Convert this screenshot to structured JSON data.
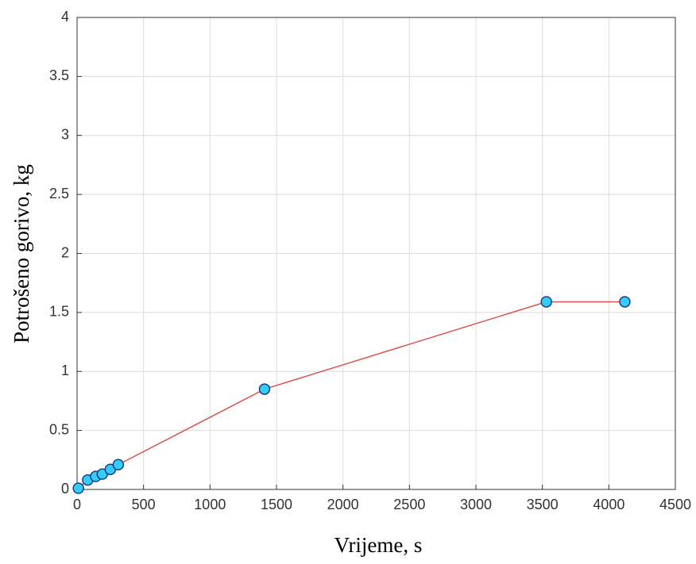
{
  "chart_data": {
    "type": "line",
    "xlabel": "Vrijeme, s",
    "ylabel": "Potrošeno gorivo, kg",
    "x": [
      10,
      80,
      140,
      190,
      250,
      310,
      1410,
      3530,
      4120
    ],
    "series": [
      {
        "values": [
          0.01,
          0.08,
          0.11,
          0.13,
          0.17,
          0.21,
          0.85,
          1.59,
          1.59
        ],
        "color": "#d9534f",
        "marker_color": "#33ccff",
        "marker_edge": "#1f3f7a"
      }
    ],
    "xlim": [
      0,
      4500
    ],
    "xticks": [
      0,
      500,
      1000,
      1500,
      2000,
      2500,
      3000,
      3500,
      4000,
      4500
    ],
    "ylim": [
      0,
      4
    ],
    "yticks": [
      0,
      0.5,
      1,
      1.5,
      2,
      2.5,
      3,
      3.5,
      4
    ],
    "grid": true
  }
}
